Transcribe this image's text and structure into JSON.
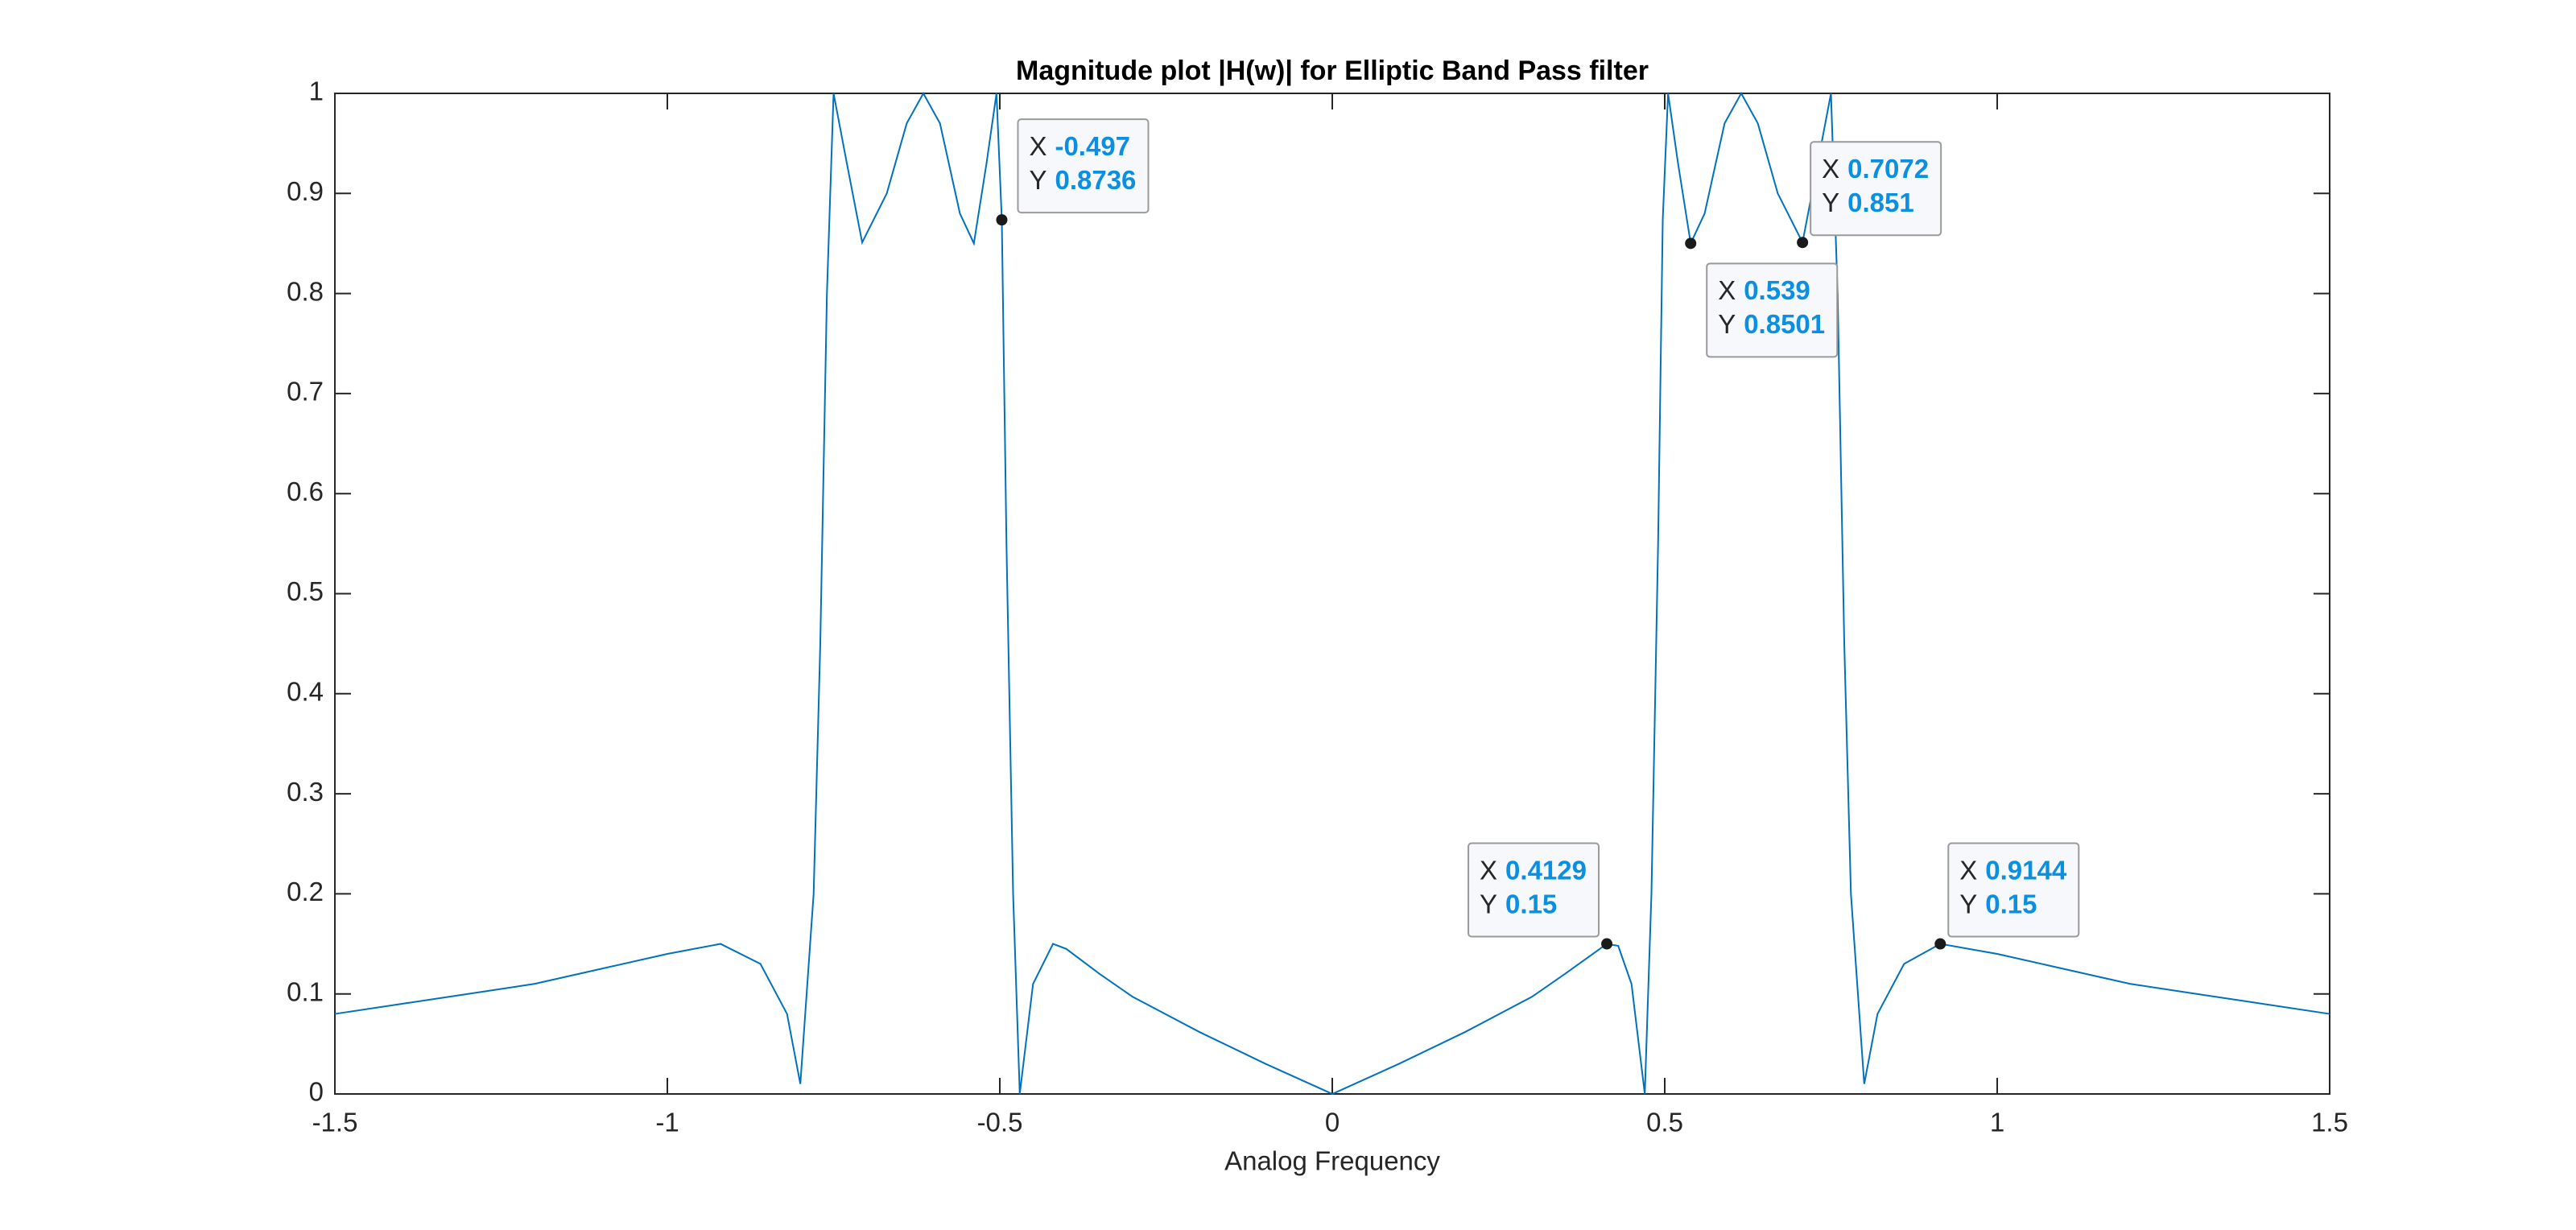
{
  "chart_data": {
    "type": "line",
    "title": "Magnitude plot |H(w)| for Elliptic Band Pass filter",
    "x_label": "Analog Frequency",
    "x": [
      -1.5,
      -1.4,
      -1.3,
      -1.2,
      -1.1,
      -1.0,
      -0.92,
      -0.86,
      -0.82,
      -0.8,
      -0.78,
      -0.77,
      -0.76,
      -0.75,
      -0.73,
      -0.707,
      -0.67,
      -0.64,
      -0.615,
      -0.59,
      -0.56,
      -0.539,
      -0.52,
      -0.505,
      -0.497,
      -0.49,
      -0.48,
      -0.47,
      -0.45,
      -0.42,
      -0.4,
      -0.35,
      -0.3,
      -0.2,
      -0.1,
      0,
      0.1,
      0.2,
      0.3,
      0.35,
      0.4129,
      0.43,
      0.45,
      0.47,
      0.48,
      0.49,
      0.497,
      0.505,
      0.52,
      0.539,
      0.56,
      0.59,
      0.615,
      0.64,
      0.67,
      0.7072,
      0.73,
      0.75,
      0.76,
      0.77,
      0.78,
      0.8,
      0.82,
      0.86,
      0.9144,
      1.0,
      1.1,
      1.2,
      1.3,
      1.4,
      1.5
    ],
    "series": [
      {
        "color": "#0072bd",
        "values": [
          0.08,
          0.09,
          0.1,
          0.11,
          0.125,
          0.14,
          0.15,
          0.13,
          0.08,
          0.01,
          0.2,
          0.45,
          0.8,
          1.0,
          0.93,
          0.851,
          0.9,
          0.97,
          1.0,
          0.97,
          0.88,
          0.8501,
          0.93,
          1.0,
          0.8736,
          0.55,
          0.2,
          0,
          0.11,
          0.15,
          0.145,
          0.12,
          0.097,
          0.062,
          0.03,
          0,
          0.03,
          0.062,
          0.097,
          0.12,
          0.15,
          0.148,
          0.11,
          0,
          0.2,
          0.55,
          0.8736,
          1.0,
          0.93,
          0.8501,
          0.88,
          0.97,
          1.0,
          0.97,
          0.9,
          0.851,
          0.93,
          1.0,
          0.8,
          0.45,
          0.2,
          0.01,
          0.08,
          0.13,
          0.15,
          0.14,
          0.125,
          0.11,
          0.1,
          0.09,
          0.08
        ]
      }
    ],
    "xlim": [
      -1.5,
      1.5
    ],
    "xticks": [
      -1.5,
      -1,
      -0.5,
      0,
      0.5,
      1,
      1.5
    ],
    "ylim": [
      0,
      1
    ],
    "yticks": [
      0,
      0.1,
      0.2,
      0.3,
      0.4,
      0.5,
      0.6,
      0.7,
      0.8,
      0.9,
      1
    ],
    "grid": false,
    "datatip_prefix": {
      "x": "X",
      "y": "Y"
    },
    "datatips": [
      {
        "x": -0.497,
        "y": 0.8736
      },
      {
        "x": 0.539,
        "y": 0.8501
      },
      {
        "x": 0.7072,
        "y": 0.851
      },
      {
        "x": 0.4129,
        "y": 0.15
      },
      {
        "x": 0.9144,
        "y": 0.15
      }
    ]
  }
}
